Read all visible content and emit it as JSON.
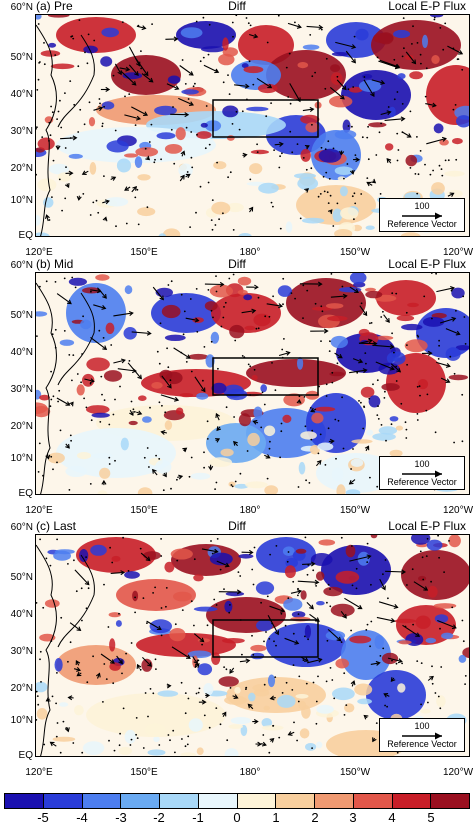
{
  "panels": [
    {
      "label": "(a) Pre",
      "center_title": "Diff",
      "right_title": "Local E-P Flux"
    },
    {
      "label": "(b) Mid",
      "center_title": "Diff",
      "right_title": "Local E-P Flux"
    },
    {
      "label": "(c) Last",
      "center_title": "Diff",
      "right_title": "Local E-P Flux"
    }
  ],
  "lat_labels": [
    "60°N",
    "50°N",
    "40°N",
    "30°N",
    "20°N",
    "10°N",
    "EQ"
  ],
  "lon_labels": [
    "120°E",
    "150°E",
    "180°",
    "150°W",
    "120°W"
  ],
  "reference_vector": {
    "value": "100",
    "label": "Reference Vector"
  },
  "colorbar": {
    "tick_labels": [
      "-5",
      "-4",
      "-3",
      "-2",
      "-1",
      "0",
      "1",
      "2",
      "3",
      "4",
      "5"
    ],
    "colors": [
      "#1a10b0",
      "#2a3cd8",
      "#4d7ef0",
      "#6aaaf2",
      "#a8d8f8",
      "#e8f6fc",
      "#fdf3d8",
      "#f8cf9e",
      "#f09a72",
      "#e2574a",
      "#c81e28",
      "#9a1020"
    ]
  }
}
